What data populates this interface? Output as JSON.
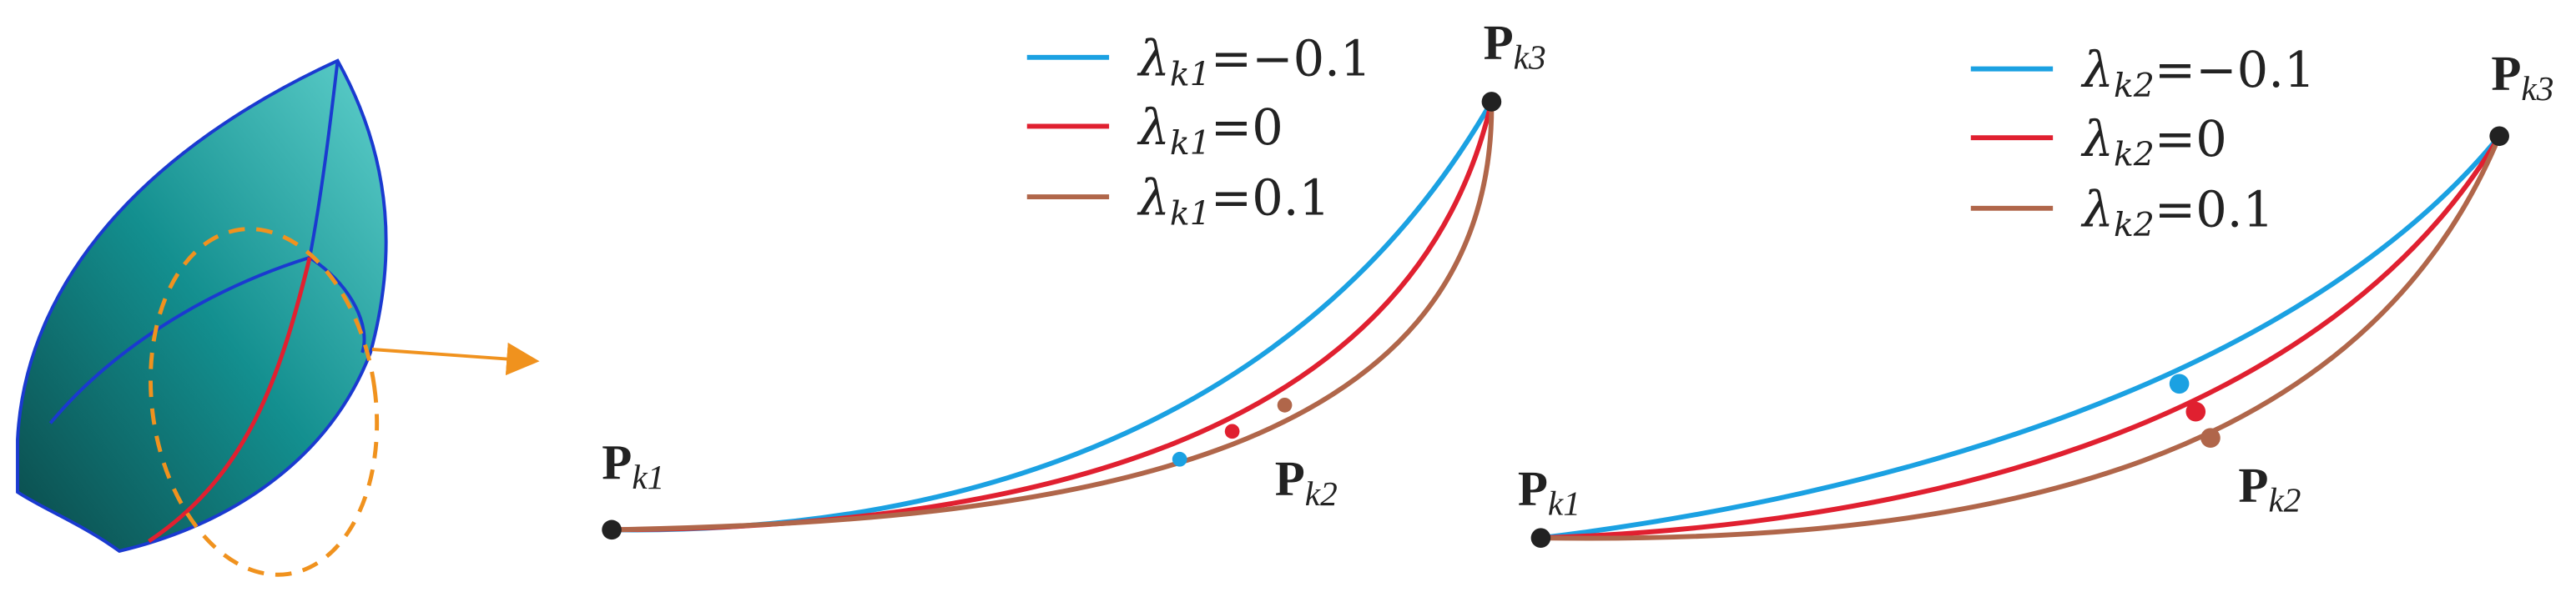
{
  "panels": [
    {
      "legend": [
        {
          "symbol": "λ",
          "subscript": "k1",
          "rest": "=−0.1",
          "color": "#1ba1e2"
        },
        {
          "symbol": "λ",
          "subscript": "k1",
          "rest": "=0",
          "color": "#e02030"
        },
        {
          "symbol": "λ",
          "subscript": "k1",
          "rest": "=0.1",
          "color": "#b0664a"
        }
      ],
      "points": [
        {
          "letter": "P",
          "subscript": "k1"
        },
        {
          "letter": "P",
          "subscript": "k2"
        },
        {
          "letter": "P",
          "subscript": "k3"
        }
      ]
    },
    {
      "legend": [
        {
          "symbol": "λ",
          "subscript": "k2",
          "rest": "=−0.1",
          "color": "#1ba1e2"
        },
        {
          "symbol": "λ",
          "subscript": "k2",
          "rest": "=0",
          "color": "#e02030"
        },
        {
          "symbol": "λ",
          "subscript": "k2",
          "rest": "=0.1",
          "color": "#b0664a"
        }
      ],
      "points": [
        {
          "letter": "P",
          "subscript": "k1"
        },
        {
          "letter": "P",
          "subscript": "k2"
        },
        {
          "letter": "P",
          "subscript": "k3"
        }
      ]
    }
  ]
}
